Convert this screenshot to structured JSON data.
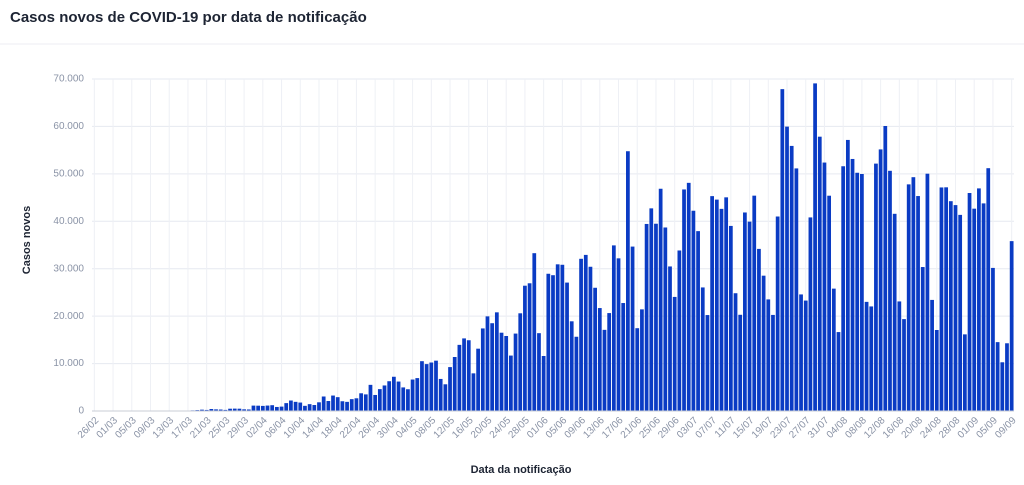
{
  "chart_data": {
    "type": "bar",
    "title": "Casos novos de COVID-19 por data de notificação",
    "xlabel": "Data da notificação",
    "ylabel": "Casos novos",
    "color": "#0a3bc4",
    "grid": true,
    "ylim": [
      0,
      70000
    ],
    "yticks": [
      0,
      {
        "value": 10000,
        "label": "10.000"
      },
      {
        "value": 20000,
        "label": "20.000"
      },
      {
        "value": 30000,
        "label": "30.000"
      },
      {
        "value": 40000,
        "label": "40.000"
      },
      {
        "value": 50000,
        "label": "50.000"
      },
      {
        "value": 60000,
        "label": "60.000"
      },
      {
        "value": 70000,
        "label": "70.000"
      }
    ],
    "categories": [
      "26/02",
      null,
      null,
      null,
      "01/03",
      null,
      null,
      null,
      "05/03",
      null,
      null,
      null,
      "09/03",
      null,
      null,
      null,
      "13/03",
      null,
      null,
      null,
      "17/03",
      null,
      null,
      null,
      "21/03",
      null,
      null,
      null,
      "25/03",
      null,
      null,
      null,
      "29/03",
      null,
      null,
      null,
      "02/04",
      null,
      null,
      null,
      "06/04",
      null,
      null,
      null,
      "10/04",
      null,
      null,
      null,
      "14/04",
      null,
      null,
      null,
      "18/04",
      null,
      null,
      null,
      "22/04",
      null,
      null,
      null,
      "26/04",
      null,
      null,
      null,
      "30/04",
      null,
      null,
      null,
      "04/05",
      null,
      null,
      null,
      "08/05",
      null,
      null,
      null,
      "12/05",
      null,
      null,
      null,
      "16/05",
      null,
      null,
      null,
      "20/05",
      null,
      null,
      null,
      "24/05",
      null,
      null,
      null,
      "28/05",
      null,
      null,
      null,
      "01/06",
      null,
      null,
      null,
      "05/06",
      null,
      null,
      null,
      "09/06",
      null,
      null,
      null,
      "13/06",
      null,
      null,
      null,
      "17/06",
      null,
      null,
      null,
      "21/06",
      null,
      null,
      null,
      "25/06",
      null,
      null,
      null,
      "29/06",
      null,
      null,
      null,
      "03/07",
      null,
      null,
      null,
      "07/07",
      null,
      null,
      null,
      "11/07",
      null,
      null,
      null,
      "15/07",
      null,
      null,
      null,
      "19/07",
      null,
      null,
      null,
      "23/07",
      null,
      null,
      null,
      "27/07",
      null,
      null,
      null,
      "31/07",
      null,
      null,
      null,
      "04/08",
      null,
      null,
      null,
      "08/08",
      null,
      null,
      null,
      "12/08",
      null,
      null,
      null,
      "16/08",
      null,
      null,
      null,
      "20/08",
      null,
      null,
      null,
      "24/08",
      null,
      null,
      null,
      "28/08",
      null,
      null,
      null,
      "01/09",
      null,
      null,
      null,
      "05/09",
      null,
      null,
      null,
      "09/09"
    ],
    "values": [
      1,
      0,
      0,
      1,
      0,
      0,
      0,
      1,
      4,
      5,
      6,
      7,
      5,
      6,
      18,
      25,
      21,
      23,
      79,
      34,
      57,
      137,
      193,
      283,
      224,
      418,
      345,
      310,
      232,
      482,
      502,
      487,
      352,
      323,
      1138,
      1119,
      1074,
      1146,
      1222,
      852,
      926,
      1661,
      2210,
      1930,
      1781,
      1089,
      1442,
      1261,
      1832,
      3058,
      2105,
      3257,
      2917,
      2055,
      1927,
      2498,
      2678,
      3735,
      3503,
      5514,
      3379,
      4613,
      5385,
      6276,
      7218,
      6209,
      4970,
      4588,
      6633,
      6935,
      10503,
      9888,
      10222,
      10611,
      6760,
      5632,
      9258,
      11385,
      13944,
      15305,
      14919,
      7938,
      13140,
      17408,
      19951,
      18508,
      20803,
      16508,
      15813,
      11687,
      16324,
      20599,
      26417,
      26928,
      33274,
      16409,
      11598,
      28936,
      28633,
      30925,
      30830,
      27075,
      18912,
      15654,
      32091,
      32913,
      30412,
      25982,
      21704,
      17110,
      20647,
      34918,
      32188,
      22765,
      54771,
      34666,
      17459,
      21432,
      39436,
      42725,
      39483,
      46860,
      38693,
      30476,
      24052,
      33846,
      46712,
      48105,
      42223,
      37923,
      26051,
      20229,
      45305,
      44571,
      42619,
      45048,
      39023,
      24831,
      20286,
      41857,
      39924,
      45403,
      34177,
      28532,
      23529,
      20257,
      41008,
      67860,
      59961,
      55891,
      51147,
      24578,
      23284,
      40816,
      69074,
      57837,
      52383,
      45392,
      25800,
      16641,
      51603,
      57152,
      53139,
      50230,
      49970,
      23010,
      22048,
      52160,
      55155,
      60091,
      50644,
      41576,
      23101,
      19373,
      47784,
      49298,
      45323,
      30355,
      50032,
      23421,
      17078,
      47134,
      47161,
      44235,
      43412,
      41350,
      16158,
      45961,
      42659,
      46934,
      43773,
      51194,
      30168,
      14521,
      10273,
      14279,
      35816
    ]
  }
}
